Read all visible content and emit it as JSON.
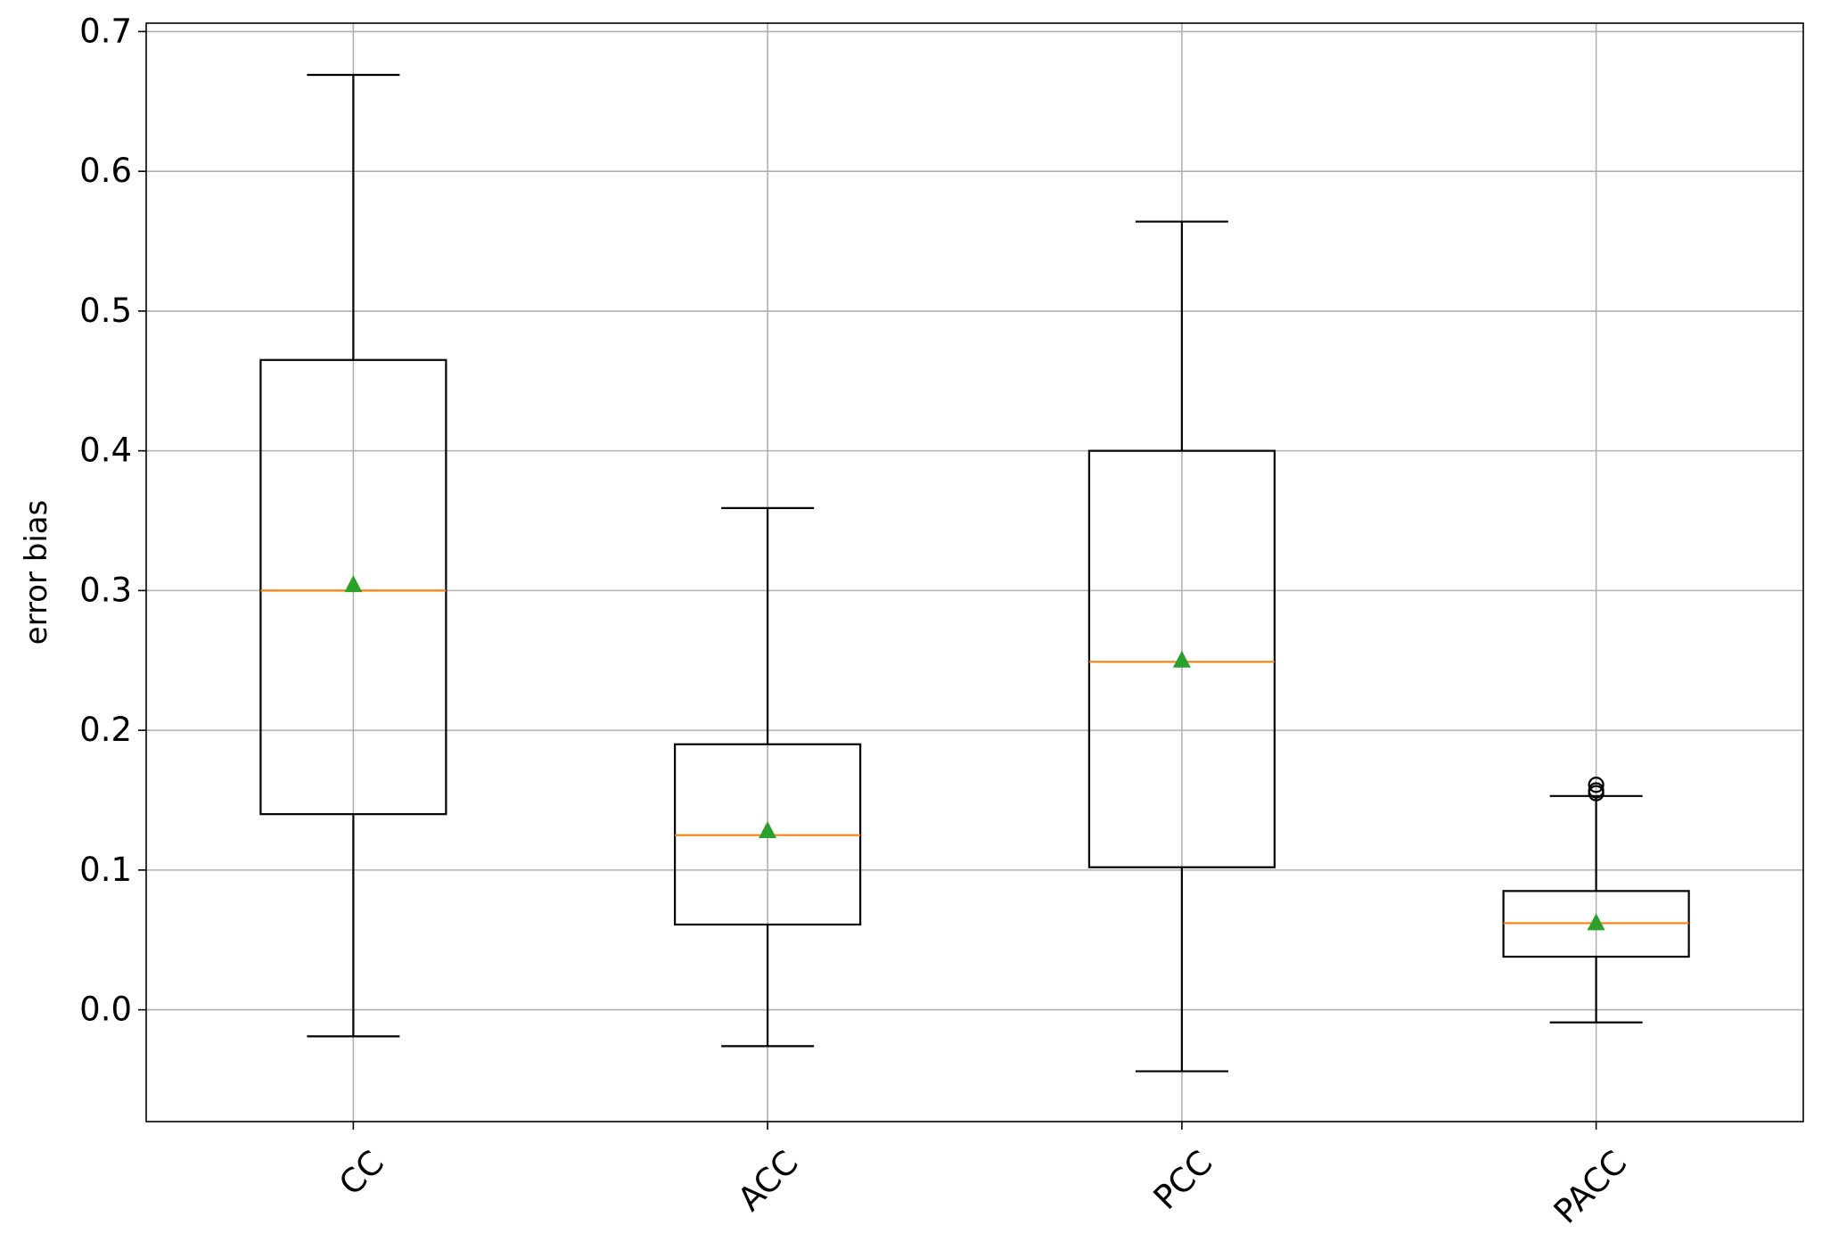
{
  "chart_data": {
    "type": "box",
    "title": "",
    "xlabel": "",
    "ylabel": "error bias",
    "ylim": [
      -0.08,
      0.706
    ],
    "yticks": [
      "0.0",
      "0.1",
      "0.2",
      "0.3",
      "0.4",
      "0.5",
      "0.6",
      "0.7"
    ],
    "grid": true,
    "categories": [
      "CC",
      "ACC",
      "PCC",
      "PACC"
    ],
    "boxes": [
      {
        "label": "CC",
        "whisker_low": -0.019,
        "q1": 0.14,
        "median": 0.3,
        "mean": 0.304,
        "q3": 0.465,
        "whisker_high": 0.669,
        "outliers": []
      },
      {
        "label": "ACC",
        "whisker_low": -0.026,
        "q1": 0.061,
        "median": 0.125,
        "mean": 0.128,
        "q3": 0.19,
        "whisker_high": 0.359,
        "outliers": []
      },
      {
        "label": "PCC",
        "whisker_low": -0.044,
        "q1": 0.102,
        "median": 0.249,
        "mean": 0.25,
        "q3": 0.4,
        "whisker_high": 0.564,
        "outliers": []
      },
      {
        "label": "PACC",
        "whisker_low": -0.009,
        "q1": 0.038,
        "median": 0.062,
        "mean": 0.062,
        "q3": 0.085,
        "whisker_high": 0.153,
        "outliers": [
          0.155,
          0.157,
          0.161
        ]
      }
    ],
    "colors": {
      "box": "#000000",
      "median": "#ff7f0e",
      "mean": "#2ca02c",
      "grid": "#b0b0b0"
    }
  }
}
